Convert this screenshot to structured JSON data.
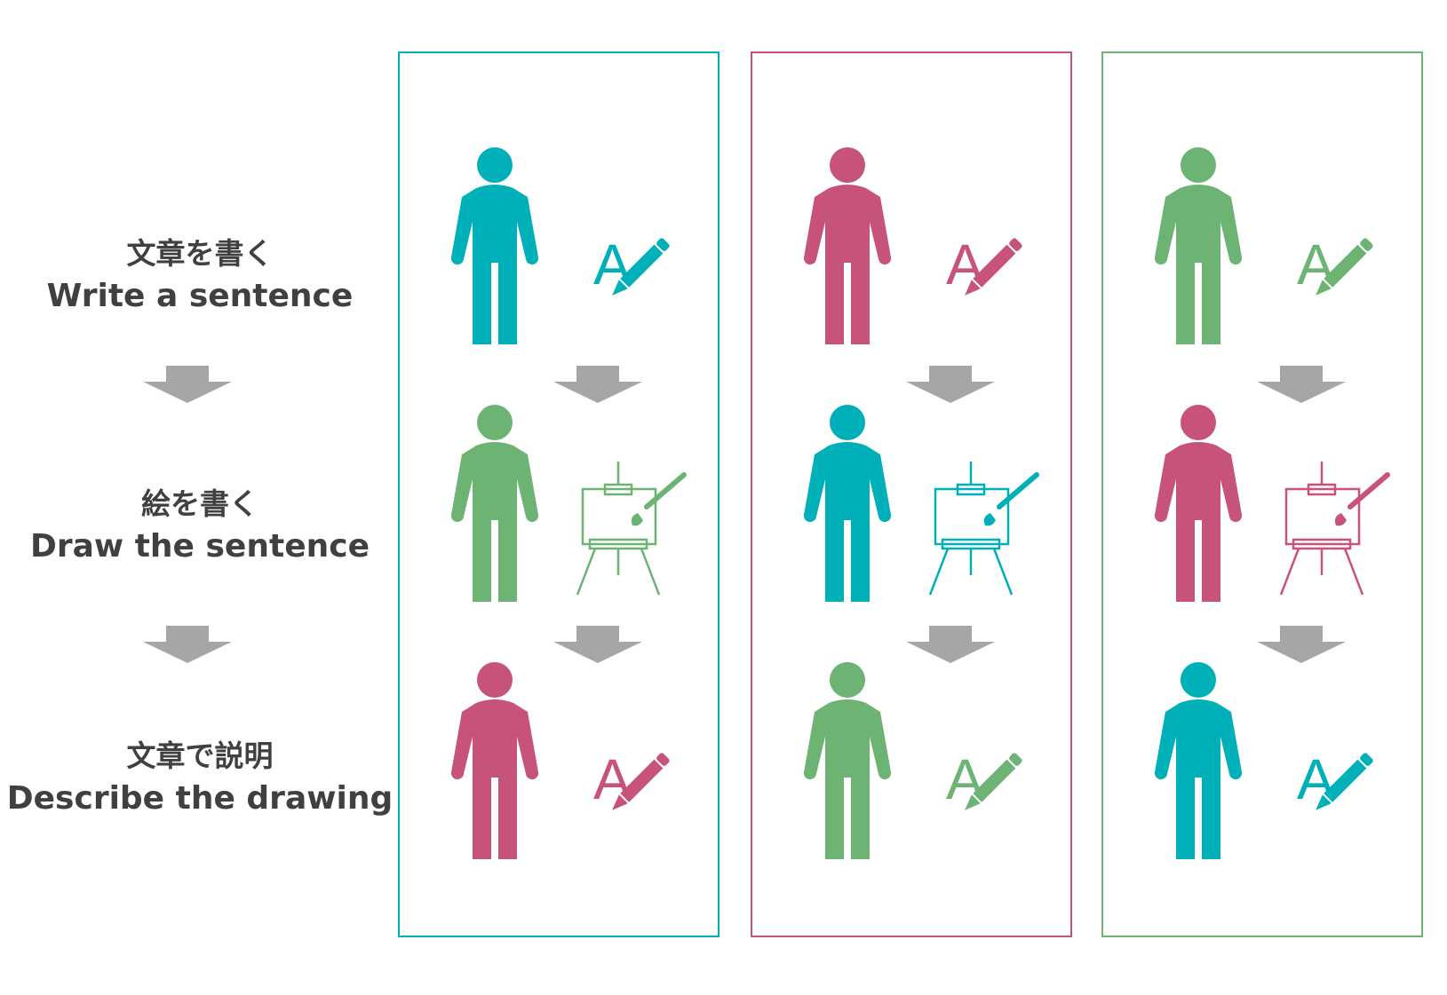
{
  "colors": {
    "teal": "#00b0b8",
    "pink": "#c85378",
    "green": "#6db374",
    "arrow": "#a6a6a6",
    "label": "#404040"
  },
  "steps": [
    {
      "jp": "文章を書く",
      "en": "Write a sentence"
    },
    {
      "jp": "絵を書く",
      "en": "Draw the sentence"
    },
    {
      "jp": "文章で説明",
      "en": "Describe the drawing"
    }
  ],
  "write_icon_letter": "A",
  "columns": [
    {
      "border": "teal",
      "rows": [
        {
          "person": "teal",
          "icon": "pencil-icon",
          "icon_color": "teal"
        },
        {
          "person": "green",
          "icon": "easel-icon",
          "icon_color": "green"
        },
        {
          "person": "pink",
          "icon": "pencil-icon",
          "icon_color": "pink"
        }
      ]
    },
    {
      "border": "pink",
      "rows": [
        {
          "person": "pink",
          "icon": "pencil-icon",
          "icon_color": "pink"
        },
        {
          "person": "teal",
          "icon": "easel-icon",
          "icon_color": "teal"
        },
        {
          "person": "green",
          "icon": "pencil-icon",
          "icon_color": "green"
        }
      ]
    },
    {
      "border": "green",
      "rows": [
        {
          "person": "green",
          "icon": "pencil-icon",
          "icon_color": "green"
        },
        {
          "person": "pink",
          "icon": "easel-icon",
          "icon_color": "pink"
        },
        {
          "person": "teal",
          "icon": "pencil-icon",
          "icon_color": "teal"
        }
      ]
    }
  ]
}
